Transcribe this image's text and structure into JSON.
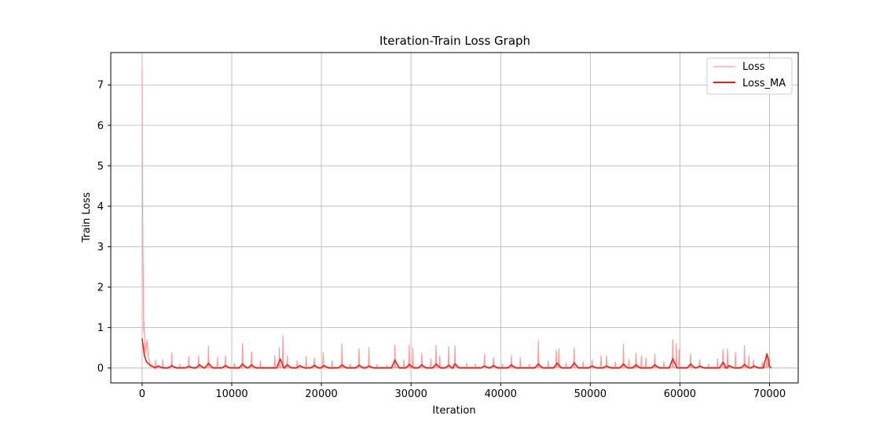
{
  "chart_data": {
    "type": "line",
    "title": "Iteration-Train Loss Graph",
    "xlabel": "Iteration",
    "ylabel": "Train Loss",
    "xlim": [
      -3500,
      73200
    ],
    "ylim": [
      -0.37,
      7.8
    ],
    "xticks": [
      0,
      10000,
      20000,
      30000,
      40000,
      50000,
      60000,
      70000
    ],
    "yticks": [
      0,
      1,
      2,
      3,
      4,
      5,
      6,
      7
    ],
    "grid": true,
    "legend_position": "top-right",
    "series": [
      {
        "name": "Loss",
        "color": "#ff9a9a",
        "baseline": 0.02,
        "start_points": [
          [
            0,
            7.45
          ],
          [
            40,
            5.0
          ],
          [
            80,
            3.0
          ],
          [
            120,
            2.25
          ],
          [
            170,
            0.9
          ],
          [
            220,
            1.15
          ],
          [
            300,
            0.5
          ],
          [
            400,
            0.35
          ],
          [
            550,
            0.7
          ],
          [
            700,
            0.25
          ],
          [
            900,
            0.1
          ],
          [
            1200,
            0.05
          ]
        ],
        "spikes": [
          [
            1500,
            0.2
          ],
          [
            2300,
            0.2
          ],
          [
            3300,
            0.37
          ],
          [
            4200,
            0.1
          ],
          [
            5200,
            0.28
          ],
          [
            6300,
            0.3
          ],
          [
            7400,
            0.53
          ],
          [
            8400,
            0.26
          ],
          [
            9300,
            0.3
          ],
          [
            10300,
            0.12
          ],
          [
            11200,
            0.6
          ],
          [
            12200,
            0.4
          ],
          [
            13200,
            0.18
          ],
          [
            14800,
            0.3
          ],
          [
            15300,
            0.5
          ],
          [
            15700,
            0.8
          ],
          [
            16200,
            0.3
          ],
          [
            17300,
            0.18
          ],
          [
            18300,
            0.28
          ],
          [
            19200,
            0.25
          ],
          [
            20200,
            0.38
          ],
          [
            21200,
            0.18
          ],
          [
            22300,
            0.6
          ],
          [
            23200,
            0.1
          ],
          [
            24200,
            0.48
          ],
          [
            25300,
            0.5
          ],
          [
            26200,
            0.08
          ],
          [
            27300,
            0.08
          ],
          [
            28200,
            0.56
          ],
          [
            29200,
            0.2
          ],
          [
            29800,
            0.57
          ],
          [
            30200,
            0.5
          ],
          [
            31200,
            0.35
          ],
          [
            32200,
            0.22
          ],
          [
            32800,
            0.56
          ],
          [
            33200,
            0.3
          ],
          [
            34200,
            0.53
          ],
          [
            34900,
            0.55
          ],
          [
            36200,
            0.12
          ],
          [
            37200,
            0.1
          ],
          [
            38200,
            0.33
          ],
          [
            39200,
            0.26
          ],
          [
            40200,
            0.1
          ],
          [
            41200,
            0.3
          ],
          [
            42200,
            0.25
          ],
          [
            43200,
            0.1
          ],
          [
            44200,
            0.68
          ],
          [
            45300,
            0.18
          ],
          [
            46200,
            0.44
          ],
          [
            46500,
            0.48
          ],
          [
            47300,
            0.12
          ],
          [
            48200,
            0.5
          ],
          [
            49200,
            0.15
          ],
          [
            50200,
            0.2
          ],
          [
            51200,
            0.3
          ],
          [
            51800,
            0.3
          ],
          [
            52800,
            0.15
          ],
          [
            53700,
            0.58
          ],
          [
            54300,
            0.2
          ],
          [
            55100,
            0.36
          ],
          [
            55700,
            0.3
          ],
          [
            56200,
            0.25
          ],
          [
            57200,
            0.34
          ],
          [
            58200,
            0.15
          ],
          [
            59200,
            0.7
          ],
          [
            59600,
            0.6
          ],
          [
            59900,
            0.45
          ],
          [
            61200,
            0.35
          ],
          [
            62200,
            0.2
          ],
          [
            63200,
            0.1
          ],
          [
            64200,
            0.22
          ],
          [
            64800,
            0.46
          ],
          [
            65300,
            0.47
          ],
          [
            66200,
            0.38
          ],
          [
            67200,
            0.55
          ],
          [
            67700,
            0.3
          ],
          [
            68200,
            0.2
          ],
          [
            69200,
            0.15
          ],
          [
            69700,
            0.3
          ]
        ]
      },
      {
        "name": "Loss_MA",
        "color": "#e8201c",
        "baseline": 0.0,
        "start_points": [
          [
            0,
            0.73
          ],
          [
            100,
            0.55
          ],
          [
            250,
            0.3
          ],
          [
            500,
            0.15
          ],
          [
            900,
            0.06
          ],
          [
            1400,
            0.01
          ]
        ],
        "bumps": [
          [
            1800,
            0.05
          ],
          [
            3300,
            0.06
          ],
          [
            5200,
            0.04
          ],
          [
            6400,
            0.08
          ],
          [
            7400,
            0.12
          ],
          [
            9300,
            0.06
          ],
          [
            11200,
            0.1
          ],
          [
            12200,
            0.08
          ],
          [
            15400,
            0.22
          ],
          [
            16200,
            0.08
          ],
          [
            17600,
            0.06
          ],
          [
            19200,
            0.07
          ],
          [
            20300,
            0.06
          ],
          [
            22300,
            0.08
          ],
          [
            24200,
            0.07
          ],
          [
            25300,
            0.05
          ],
          [
            28200,
            0.2
          ],
          [
            29800,
            0.09
          ],
          [
            31200,
            0.08
          ],
          [
            32800,
            0.1
          ],
          [
            34200,
            0.07
          ],
          [
            34900,
            0.1
          ],
          [
            38200,
            0.05
          ],
          [
            39200,
            0.06
          ],
          [
            41200,
            0.08
          ],
          [
            44200,
            0.1
          ],
          [
            46300,
            0.12
          ],
          [
            48200,
            0.13
          ],
          [
            50200,
            0.05
          ],
          [
            51800,
            0.05
          ],
          [
            53700,
            0.1
          ],
          [
            55100,
            0.08
          ],
          [
            57200,
            0.08
          ],
          [
            59200,
            0.23
          ],
          [
            61200,
            0.1
          ],
          [
            62200,
            0.05
          ],
          [
            64800,
            0.14
          ],
          [
            65500,
            0.06
          ],
          [
            67200,
            0.09
          ],
          [
            68300,
            0.05
          ],
          [
            69700,
            0.35
          ]
        ]
      }
    ]
  }
}
